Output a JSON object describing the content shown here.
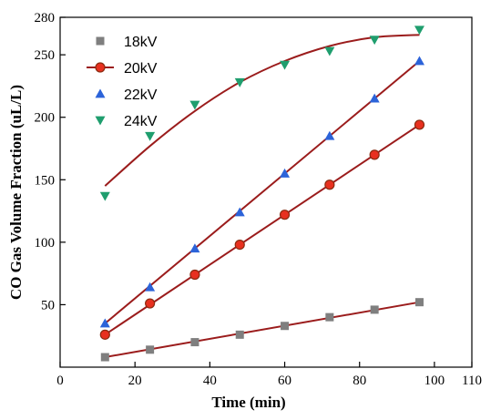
{
  "chart_data": {
    "type": "scatter",
    "title": "",
    "xlabel": "Time (min)",
    "ylabel": "CO Gas Volume Fraction (uL/L)",
    "xlim": [
      0,
      110
    ],
    "ylim": [
      0,
      280
    ],
    "xticks": [
      0,
      20,
      40,
      60,
      80,
      100,
      110
    ],
    "yticks": [
      50,
      100,
      150,
      200,
      250,
      280
    ],
    "grid": false,
    "legend_position": "top-left",
    "fit_line_color": "#9b1c1c",
    "series": [
      {
        "name": "18kV",
        "marker": "square",
        "color": "#7f7f7f",
        "x": [
          12,
          24,
          36,
          48,
          60,
          72,
          84,
          96
        ],
        "y": [
          8,
          14,
          20,
          26,
          33,
          40,
          46,
          52
        ],
        "fit": [
          [
            12,
            8
          ],
          [
            96,
            52
          ]
        ]
      },
      {
        "name": "20kV",
        "marker": "circle",
        "color": "#e8301f",
        "x": [
          12,
          24,
          36,
          48,
          60,
          72,
          84,
          96
        ],
        "y": [
          26,
          51,
          74,
          98,
          122,
          146,
          170,
          194
        ],
        "fit": [
          [
            12,
            26
          ],
          [
            96,
            194
          ]
        ]
      },
      {
        "name": "22kV",
        "marker": "triangle-up",
        "color": "#2c63d9",
        "x": [
          12,
          24,
          36,
          48,
          60,
          72,
          84,
          96
        ],
        "y": [
          35,
          64,
          95,
          124,
          155,
          185,
          215,
          245
        ],
        "fit": [
          [
            12,
            35
          ],
          [
            96,
            245
          ]
        ]
      },
      {
        "name": "24kV",
        "marker": "triangle-down",
        "color": "#1f9e6e",
        "x": [
          12,
          24,
          36,
          48,
          60,
          72,
          84,
          96
        ],
        "y": [
          137,
          185,
          210,
          228,
          242,
          253,
          262,
          270
        ],
        "fit": [
          [
            12,
            145
          ],
          [
            24,
            177
          ],
          [
            36,
            205
          ],
          [
            48,
            228
          ],
          [
            60,
            245
          ],
          [
            72,
            257
          ],
          [
            84,
            264
          ],
          [
            96,
            266
          ]
        ]
      }
    ]
  }
}
